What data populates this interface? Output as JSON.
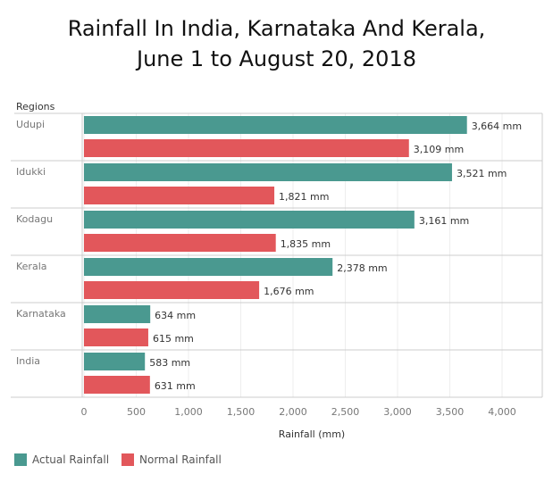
{
  "chart_data": {
    "type": "bar",
    "orientation": "horizontal",
    "title": "Rainfall In India, Karnataka And Kerala,",
    "subtitle": "June 1 to August 20, 2018",
    "row_header": "Regions",
    "xlabel": "Rainfall (mm)",
    "xlim": [
      0,
      4400
    ],
    "xticks": [
      "0",
      "500",
      "1,000",
      "1,500",
      "2,000",
      "2,500",
      "3,000",
      "3,500",
      "4,000"
    ],
    "xtick_values": [
      0,
      500,
      1000,
      1500,
      2000,
      2500,
      3000,
      3500,
      4000
    ],
    "categories": [
      "Udupi",
      "Idukki",
      "Kodagu",
      "Kerala",
      "Karnataka",
      "India"
    ],
    "series": [
      {
        "name": "Actual Rainfall",
        "color": "#4a9990",
        "values": [
          3664,
          3521,
          3161,
          2378,
          634,
          583
        ],
        "labels": [
          "3,664 mm",
          "3,521 mm",
          "3,161 mm",
          "2,378 mm",
          "634 mm",
          "583 mm"
        ]
      },
      {
        "name": "Normal Rainfall",
        "color": "#e2575b",
        "values": [
          3109,
          1821,
          1835,
          1676,
          615,
          631
        ],
        "labels": [
          "3,109 mm",
          "1,821 mm",
          "1,835 mm",
          "1,676 mm",
          "615 mm",
          "631 mm"
        ]
      }
    ],
    "grid": true,
    "legend": "bottom-left"
  }
}
